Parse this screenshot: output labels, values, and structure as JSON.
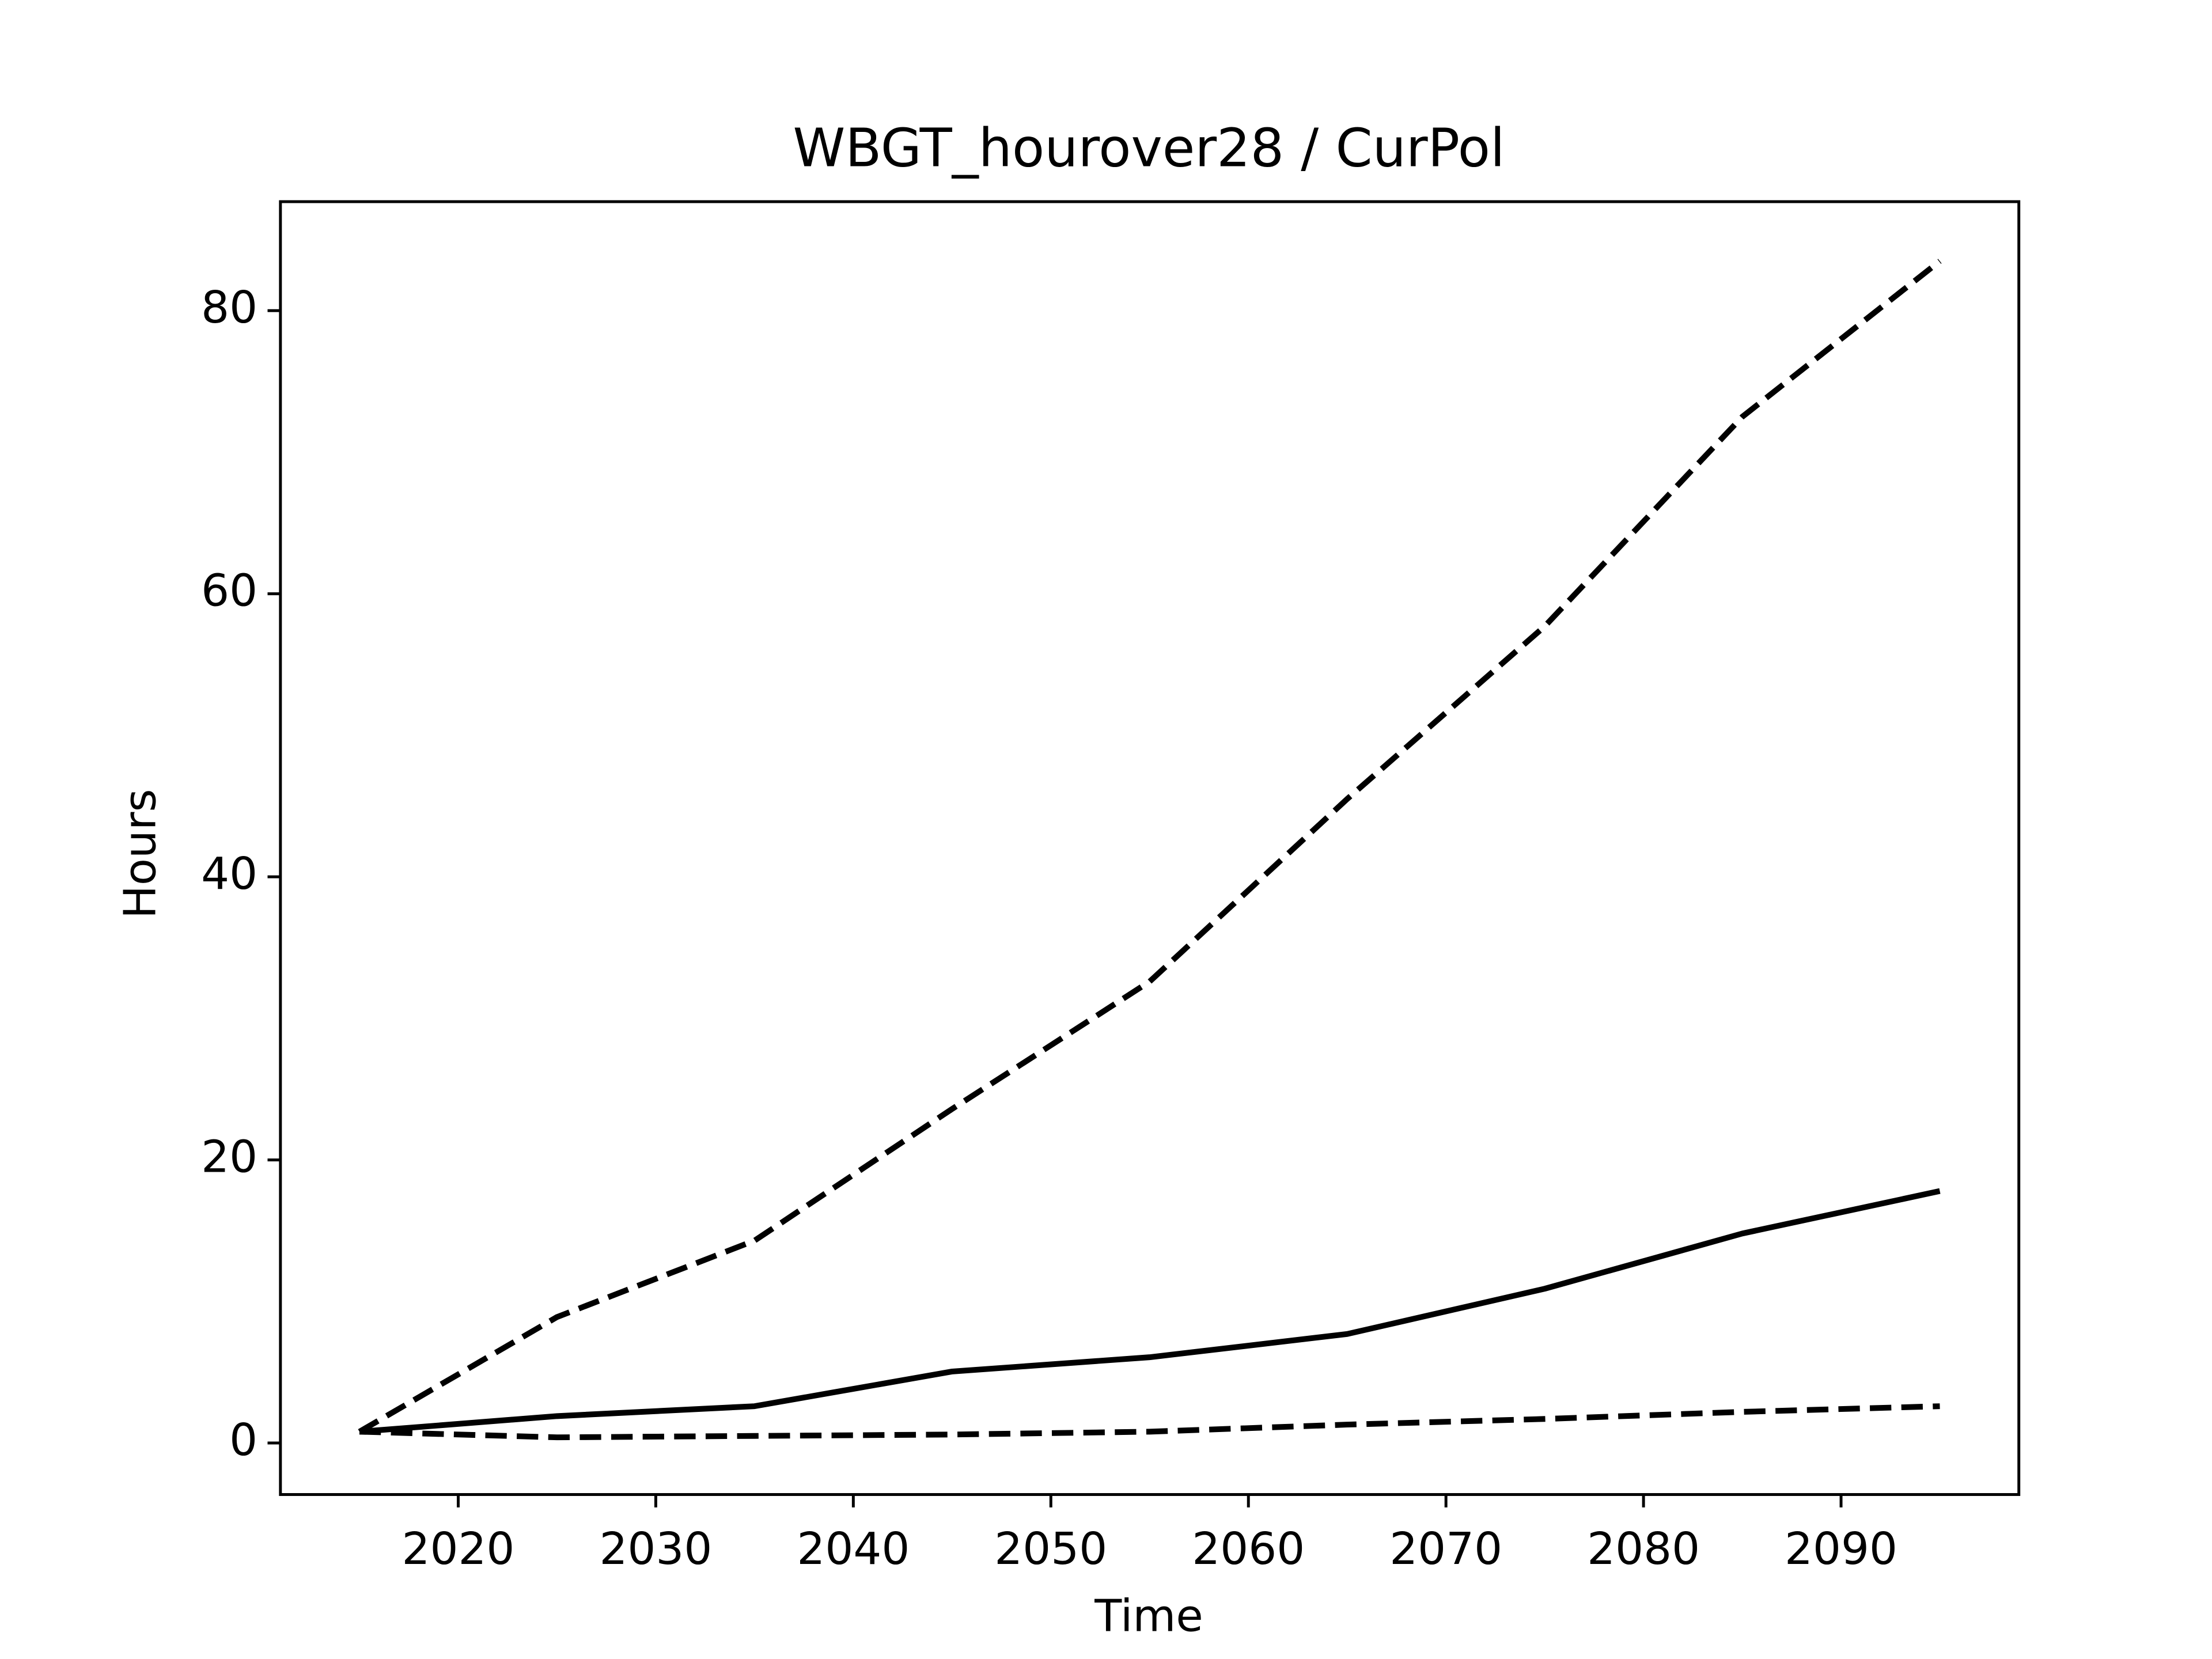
{
  "chart_data": {
    "type": "line",
    "title": "WBGT_hourover28 / CurPol",
    "x_label": "Time",
    "y_label": "Hours",
    "x": [
      2015,
      2025,
      2035,
      2045,
      2055,
      2065,
      2075,
      2085,
      2095
    ],
    "series": [
      {
        "color": "#000000",
        "dash": false,
        "values": [
          0.8,
          1.9,
          2.6,
          5.05,
          6.06,
          7.7,
          10.9,
          14.8,
          17.8
        ]
      },
      {
        "color": "#000000",
        "dash": true,
        "values": [
          0.8,
          8.9,
          14.3,
          23.6,
          32.6,
          45.5,
          57.7,
          72.5,
          83.5
        ]
      },
      {
        "color": "#000000",
        "dash": true,
        "values": [
          0.8,
          0.4,
          0.5,
          0.6,
          0.8,
          1.3,
          1.7,
          2.2,
          2.6
        ]
      }
    ],
    "xlim": [
      2011,
      2099
    ],
    "xticks": [
      2020,
      2030,
      2040,
      2050,
      2060,
      2070,
      2080,
      2090
    ],
    "ylim": [
      -3.64,
      87.7
    ],
    "yticks": [
      0,
      20,
      40,
      60,
      80
    ],
    "grid": false
  }
}
